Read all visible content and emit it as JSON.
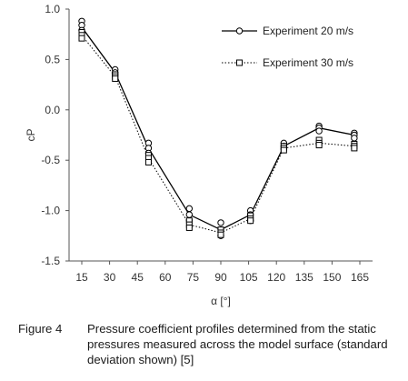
{
  "chart_data": {
    "type": "line",
    "title": "",
    "xlabel": "α [°]",
    "ylabel": "cP",
    "x_tick_labels": [
      "15",
      "30",
      "45",
      "60",
      "75",
      "90",
      "105",
      "120",
      "135",
      "150",
      "165"
    ],
    "y_tick_labels": [
      "1.0",
      "0.5",
      "0.0",
      "-0.5",
      "-1.0",
      "-1.5"
    ],
    "ylim": [
      -1.5,
      1.0
    ],
    "xlim": [
      15,
      165
    ],
    "grid": false,
    "legend_position": "top-right",
    "series": [
      {
        "name": "Experiment 20 m/s",
        "style": "solid",
        "marker": "circle",
        "color": "#000000",
        "x": [
          15,
          33,
          51,
          73,
          90,
          106,
          124,
          143,
          162
        ],
        "y": [
          0.82,
          0.37,
          -0.38,
          -1.04,
          -1.19,
          -1.04,
          -0.36,
          -0.18,
          -0.25
        ],
        "samples": [
          [
            0.88,
            0.84,
            0.79
          ],
          [
            0.4,
            0.37,
            0.35
          ],
          [
            -0.33,
            -0.38,
            -0.43
          ],
          [
            -0.98,
            -1.04,
            -1.1
          ],
          [
            -1.12,
            -1.19,
            -1.25
          ],
          [
            -1.0,
            -1.04,
            -1.1
          ],
          [
            -0.33,
            -0.36,
            -0.39
          ],
          [
            -0.16,
            -0.18,
            -0.21
          ],
          [
            -0.23,
            -0.25,
            -0.28
          ]
        ]
      },
      {
        "name": "Experiment 30 m/s",
        "style": "dotted",
        "marker": "square",
        "color": "#000000",
        "x": [
          15,
          33,
          51,
          73,
          90,
          106,
          124,
          143,
          162
        ],
        "y": [
          0.74,
          0.33,
          -0.48,
          -1.14,
          -1.22,
          -1.08,
          -0.38,
          -0.33,
          -0.36
        ],
        "samples": [
          [
            0.77,
            0.74,
            0.71
          ],
          [
            0.35,
            0.33,
            0.31
          ],
          [
            -0.45,
            -0.48,
            -0.52
          ],
          [
            -1.1,
            -1.14,
            -1.17
          ],
          [
            -1.19,
            -1.22,
            -1.24
          ],
          [
            -1.05,
            -1.08,
            -1.1
          ],
          [
            -0.36,
            -0.38,
            -0.4
          ],
          [
            -0.3,
            -0.33,
            -0.35
          ],
          [
            -0.34,
            -0.36,
            -0.38
          ]
        ]
      }
    ]
  },
  "caption": {
    "label": "Figure 4",
    "text": "Pressure coefficient profiles determined from the static pressures measured across the model surface (standard deviation shown) [5]"
  }
}
